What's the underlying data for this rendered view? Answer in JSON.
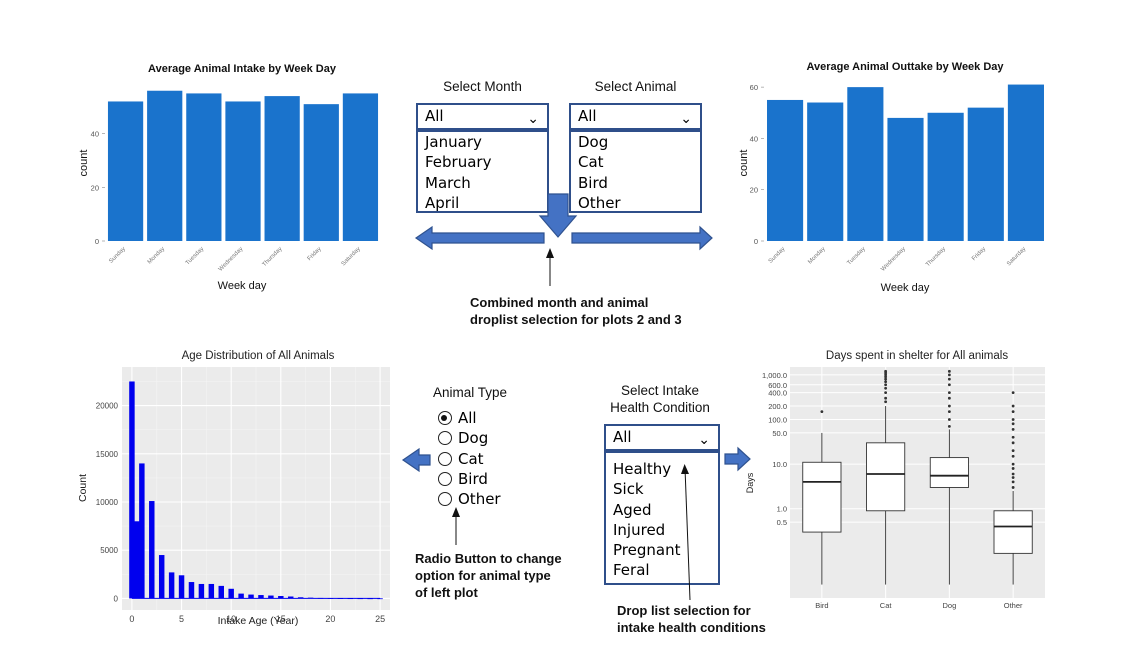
{
  "colors": {
    "bar_blue": "#1a73cc",
    "hist_blue": "#0000ee",
    "panel_grey": "#ebebeb",
    "arrow_fill": "#4472c4",
    "arrow_stroke": "#2f528f"
  },
  "controls": {
    "month": {
      "label": "Select Month",
      "selected": "All",
      "options": [
        "January",
        "February",
        "March",
        "April"
      ]
    },
    "animal": {
      "label": "Select Animal",
      "selected": "All",
      "options": [
        "Dog",
        "Cat",
        "Bird",
        "Other"
      ]
    },
    "animal_type": {
      "label": "Animal Type",
      "selected": "All",
      "options": [
        "All",
        "Dog",
        "Cat",
        "Bird",
        "Other"
      ]
    },
    "health": {
      "label_line1": "Select Intake",
      "label_line2": "Health Condition",
      "selected": "All",
      "options": [
        "Healthy",
        "Sick",
        "Aged",
        "Injured",
        "Pregnant",
        "Feral"
      ]
    }
  },
  "annotations": {
    "combined": [
      "Combined month and animal",
      "droplist selection for plots 2 and 3"
    ],
    "radio": [
      "Radio Button to change",
      "option for animal type",
      "of left plot"
    ],
    "health": [
      "Drop list selection for",
      "intake health conditions"
    ]
  },
  "chart_data": [
    {
      "type": "bar",
      "title": "Average Animal Intake by Week Day",
      "xlabel": "Week day",
      "ylabel": "count",
      "categories": [
        "Sunday",
        "Monday",
        "Tuesday",
        "Wednesday",
        "Thursday",
        "Friday",
        "Saturday"
      ],
      "values": [
        52,
        56,
        55,
        52,
        54,
        51,
        55
      ],
      "ylim": [
        0,
        60
      ],
      "yticks": [
        "0",
        "20",
        "40"
      ],
      "grid": false
    },
    {
      "type": "bar",
      "title": "Average Animal Outtake by Week Day",
      "xlabel": "Week day",
      "ylabel": "count",
      "categories": [
        "Sunday",
        "Monday",
        "Tuesday",
        "Wednesday",
        "Thursday",
        "Friday",
        "Saturday"
      ],
      "values": [
        55,
        54,
        60,
        48,
        50,
        52,
        61
      ],
      "ylim": [
        0,
        62
      ],
      "yticks": [
        "0",
        "20",
        "40",
        "60"
      ],
      "grid": false
    },
    {
      "type": "bar",
      "title": "Age Distribution of All Animals",
      "xlabel": "Intake Age (Year)",
      "ylabel": "Count",
      "x": [
        0,
        0.5,
        1,
        2,
        3,
        4,
        5,
        6,
        7,
        8,
        9,
        10,
        11,
        12,
        13,
        14,
        15,
        16,
        17,
        18,
        19,
        20,
        21,
        22,
        23,
        24,
        25
      ],
      "values": [
        22500,
        8000,
        14000,
        10100,
        4500,
        2700,
        2400,
        1700,
        1500,
        1500,
        1300,
        1000,
        500,
        400,
        350,
        300,
        250,
        200,
        120,
        80,
        50,
        40,
        30,
        20,
        15,
        10,
        10
      ],
      "xlim": [
        -1,
        26
      ],
      "ylim": [
        -1200,
        24000
      ],
      "xticks": [
        "0",
        "5",
        "10",
        "15",
        "20",
        "25"
      ],
      "yticks": [
        "0",
        "5000",
        "10000",
        "15000",
        "20000"
      ],
      "grid": true
    },
    {
      "type": "box",
      "title": "Days spent in shelter for All animals",
      "xlabel": "",
      "ylabel": "Days",
      "categories": [
        "Bird",
        "Cat",
        "Dog",
        "Other"
      ],
      "scale": "log",
      "ylim": [
        0.01,
        1500
      ],
      "yticks": [
        "0.5",
        "1.0",
        "10.0",
        "50.0",
        "100.0",
        "200.0",
        "400.0",
        "600.0",
        "1,000.0"
      ],
      "boxes": [
        {
          "name": "Bird",
          "min": 0.02,
          "q1": 0.3,
          "median": 4,
          "q3": 11,
          "max": 50,
          "outliers": [
            150
          ]
        },
        {
          "name": "Cat",
          "min": 0.02,
          "q1": 0.9,
          "median": 6,
          "q3": 30,
          "max": 200,
          "outliers": [
            250,
            300,
            400,
            500,
            600,
            700,
            800,
            900,
            1000,
            1100,
            1200
          ]
        },
        {
          "name": "Dog",
          "min": 0.02,
          "q1": 3,
          "median": 5.5,
          "q3": 14,
          "max": 60,
          "outliers": [
            70,
            100,
            150,
            200,
            300,
            400,
            600,
            800,
            1000,
            1200
          ]
        },
        {
          "name": "Other",
          "min": 0.02,
          "q1": 0.1,
          "median": 0.4,
          "q3": 0.9,
          "max": 2.5,
          "outliers": [
            3,
            4,
            5,
            6,
            8,
            10,
            15,
            20,
            30,
            40,
            60,
            80,
            100,
            150,
            200,
            400
          ]
        }
      ],
      "grid": true
    }
  ]
}
